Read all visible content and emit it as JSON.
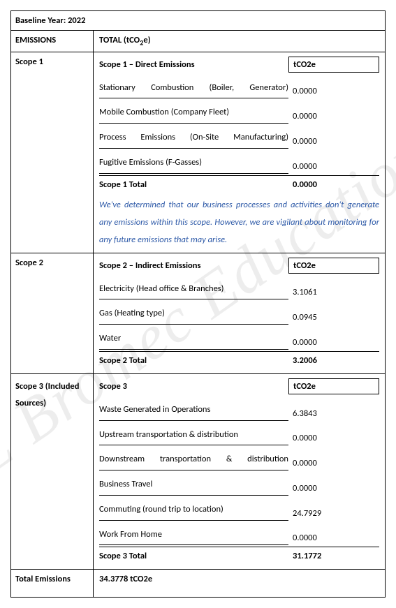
{
  "baseline": "Baseline Year: 2022",
  "header": {
    "left": "EMISSIONS",
    "right_prefix": "TOTAL (tCO",
    "right_sub": "2",
    "right_suffix": "e)"
  },
  "scope1": {
    "left": "Scope 1",
    "title": "Scope 1 – Direct Emissions",
    "unit": "tCO2e",
    "items": [
      {
        "desc": "Stationary Combustion (Boiler, Generator)",
        "val": "0.0000"
      },
      {
        "desc": "Mobile Combustion (Company Fleet)",
        "val": "0.0000"
      },
      {
        "desc": "Process Emissions (On-Site Manufacturing)",
        "val": "0.0000"
      },
      {
        "desc": "Fugitive Emissions (F-Gasses)",
        "val": "0.0000"
      }
    ],
    "total_label": "Scope 1 Total",
    "total_val": "0.0000",
    "note": "We've determined that our business processes and activities don't generate any emissions within this scope. However, we are vigilant about monitoring for any future emissions that may arise."
  },
  "scope2": {
    "left": "Scope 2",
    "title": "Scope 2 – Indirect Emissions",
    "unit": "tCO2e",
    "items": [
      {
        "desc": "Electricity (Head office & Branches)",
        "val": "3.1061"
      },
      {
        "desc": "Gas (Heating type)",
        "val": "0.0945"
      },
      {
        "desc": "Water",
        "val": "0.0000"
      }
    ],
    "total_label": "Scope 2 Total",
    "total_val": "3.2006"
  },
  "scope3": {
    "left": "Scope 3 (Included Sources)",
    "title": "Scope 3",
    "unit": "tCO2e",
    "items": [
      {
        "desc": "Waste Generated in Operations",
        "val": "6.3843"
      },
      {
        "desc": "Upstream transportation & distribution",
        "val": "0.0000"
      },
      {
        "desc": "Downstream transportation & distribution",
        "val": "0.0000"
      },
      {
        "desc": "Business Travel",
        "val": "0.0000"
      },
      {
        "desc": "Commuting (round trip to location)",
        "val": "24.7929"
      },
      {
        "desc": "Work From Home",
        "val": "0.0000"
      }
    ],
    "total_label": "Scope 3 Total",
    "total_val": "31.1772"
  },
  "grand": {
    "left": "Total Emissions",
    "right": "34.3778 tCO2e"
  },
  "watermark": "E Bromec Education"
}
